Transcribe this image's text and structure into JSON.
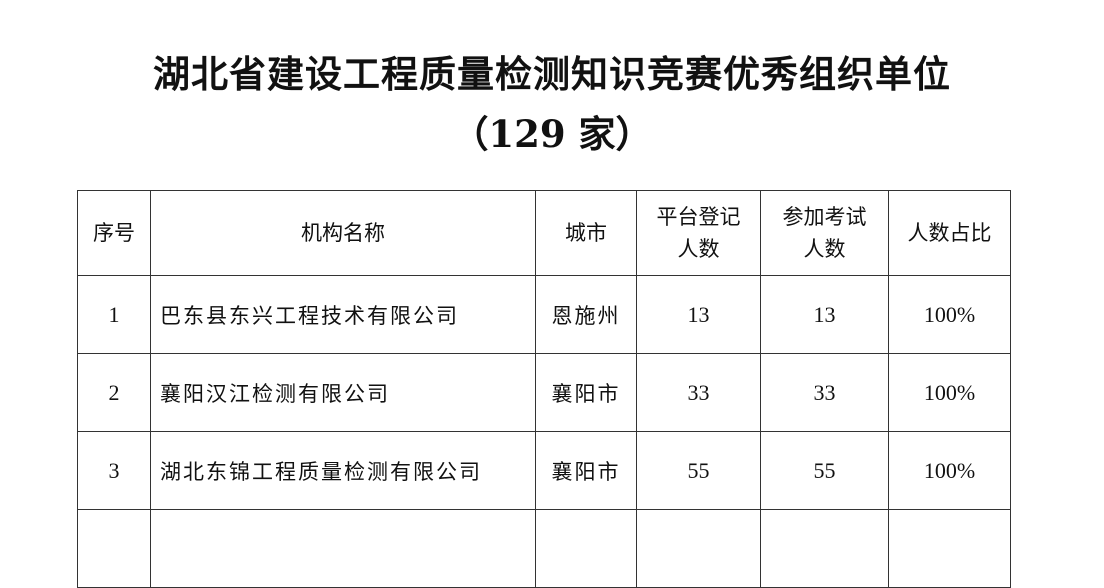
{
  "document": {
    "title": "湖北省建设工程质量检测知识竞赛优秀组织单位",
    "subtitle": "（129 家）"
  },
  "table": {
    "headers": {
      "index": "序号",
      "org": "机构名称",
      "city": "城市",
      "registered_1": "平台登记",
      "registered_2": "人数",
      "exam_1": "参加考试",
      "exam_2": "人数",
      "ratio": "人数占比"
    },
    "rows": [
      {
        "index": "1",
        "org": "巴东县东兴工程技术有限公司",
        "city": "恩施州",
        "registered": "13",
        "exam": "13",
        "ratio": "100%"
      },
      {
        "index": "2",
        "org": "襄阳汉江检测有限公司",
        "city": "襄阳市",
        "registered": "33",
        "exam": "33",
        "ratio": "100%"
      },
      {
        "index": "3",
        "org": "湖北东锦工程质量检测有限公司",
        "city": "襄阳市",
        "registered": "55",
        "exam": "55",
        "ratio": "100%"
      }
    ]
  }
}
